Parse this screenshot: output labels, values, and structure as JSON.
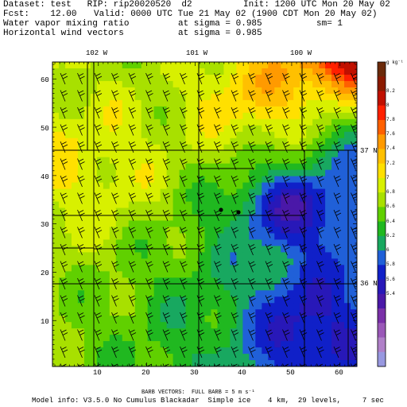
{
  "header": {
    "dataset_line": "Dataset: test   RIP: rip20020520  d2",
    "init_line": "Init: 1200 UTC Mon 20 May 02",
    "fcst_line": "Fcst:    12.00",
    "valid_line": "Valid: 0000 UTC Tue 21 May 02 (1900 CDT Mon 20 May 02)",
    "field1_name": "Water vapor mixing ratio",
    "field1_level": "at sigma = 0.985",
    "field1_extra": "sm= 1",
    "field2_name": "Horizontal wind vectors",
    "field2_level": "at sigma = 0.985"
  },
  "footer": {
    "barb_line": "BARB VECTORS:  FULL BARB = 5 m s⁻¹",
    "model_line": "Model info: V3.5.0 No Cumulus Blackadar  Simple ice    4 km,  29 levels,     7 sec"
  },
  "map": {
    "longitude_labels": [
      "102 W",
      "101 W",
      "100 W"
    ],
    "latitude_labels": [
      "37 N",
      "36 N"
    ],
    "x_ticks": [
      "10",
      "20",
      "30",
      "40",
      "50",
      "60"
    ],
    "y_ticks": [
      "10",
      "20",
      "30",
      "40",
      "50",
      "60"
    ],
    "markers": 2
  },
  "colorbar": {
    "unit_label": "g kg⁻¹",
    "labels": [
      "8.2",
      "8",
      "7.8",
      "7.6",
      "7.4",
      "7.2",
      "7",
      "6.8",
      "6.6",
      "6.4",
      "6.2",
      "6",
      "5.8",
      "5.6",
      "5.4"
    ],
    "colors": [
      "#6b2a0a",
      "#8b1a00",
      "#c01000",
      "#ff2000",
      "#ff6000",
      "#ff9a00",
      "#ffc000",
      "#ffe000",
      "#d8f000",
      "#a8e000",
      "#60d000",
      "#20b820",
      "#18a860",
      "#2060d8",
      "#1020c8",
      "#2818b8",
      "#4a18a8",
      "#7a30a8",
      "#9a58b8",
      "#b080c8",
      "#9898e0"
    ]
  }
}
